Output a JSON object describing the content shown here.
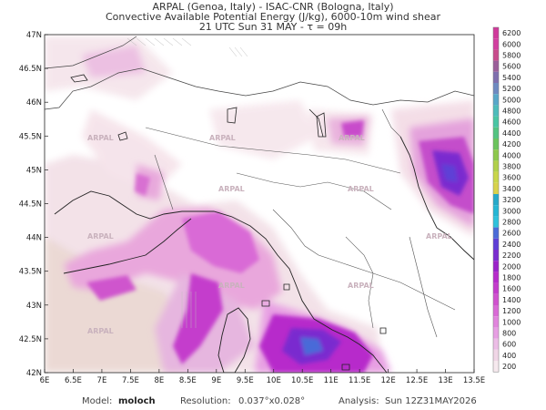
{
  "title": {
    "line1": "ARPAL (Genoa, Italy)  -  ISAC-CNR (Bologna, Italy)",
    "line2": "Convective Available Potential Energy (J/kg), 6000-10m wind shear",
    "line3": "21 UTC Sun 31 MAY   -   τ = 09h"
  },
  "map": {
    "lat_labels": [
      "47N",
      "46.5N",
      "46N",
      "45.5N",
      "45N",
      "44.5N",
      "44N",
      "43.5N",
      "43N",
      "42.5N",
      "42N"
    ],
    "lon_labels": [
      "6E",
      "6.5E",
      "7E",
      "7.5E",
      "8E",
      "8.5E",
      "9E",
      "9.5E",
      "10E",
      "10.5E",
      "11E",
      "11.5E",
      "12E",
      "12.5E",
      "13E",
      "13.5E"
    ],
    "watermark": "ARPAL",
    "lat_range": [
      42,
      47
    ],
    "lon_range": [
      6,
      13.5
    ]
  },
  "colorbar": {
    "labels": [
      "6200",
      "6000",
      "5800",
      "5600",
      "5400",
      "5200",
      "5000",
      "4800",
      "4600",
      "4400",
      "4200",
      "4000",
      "3800",
      "3600",
      "3400",
      "3200",
      "3000",
      "2800",
      "2600",
      "2400",
      "2200",
      "2000",
      "1800",
      "1600",
      "1400",
      "1200",
      "1000",
      "800",
      "600",
      "400",
      "200"
    ],
    "colors": [
      "#d03a9c",
      "#d23fa0",
      "#c84c8c",
      "#9b5f9a",
      "#7f6fae",
      "#6e8ac1",
      "#58a7c9",
      "#4dbcbb",
      "#49c6a4",
      "#53c481",
      "#6bc45d",
      "#8dc84c",
      "#b1d04a",
      "#c9d64a",
      "#d8d24c",
      "#26a9c9",
      "#25b6d4",
      "#2ec2dc",
      "#4a6bd8",
      "#5e3fd6",
      "#7a2ccf",
      "#9b23c9",
      "#b72bcb",
      "#c43ccc",
      "#d052cf",
      "#d96ad6",
      "#e185dd",
      "#e79fe3",
      "#ecbde6",
      "#f0d6e6",
      "#f6e9ee"
    ]
  },
  "footer": {
    "model_label": "Model:",
    "model_value": "moloch",
    "resolution_label": "Resolution:",
    "resolution_value": "0.037°x0.028°",
    "analysis_label": "Analysis:",
    "analysis_value": "Sun 12Z31MAY2026"
  }
}
